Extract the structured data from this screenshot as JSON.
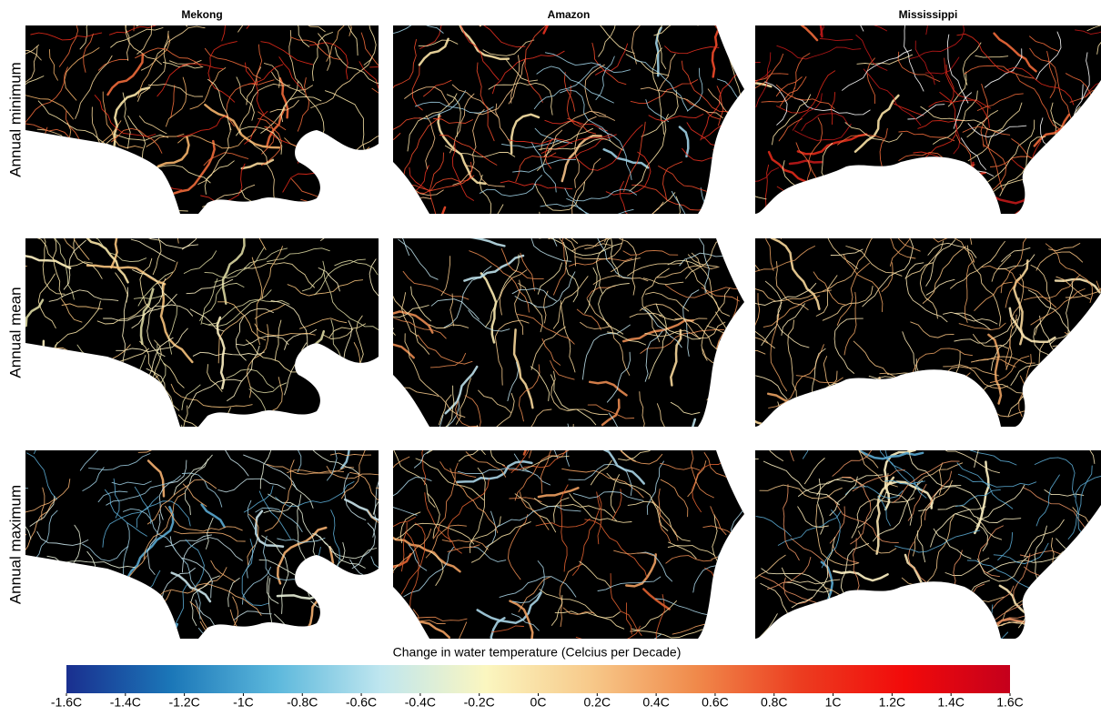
{
  "columns": [
    "Mekong",
    "Amazon",
    "Mississippi"
  ],
  "rows": [
    "Annual minimum",
    "Annual mean",
    "Annual maximum"
  ],
  "colorbar": {
    "title": "Change in water temperature (Celcius per Decade)",
    "lim": [
      -1.6,
      1.6
    ],
    "colors": [
      "#1a2f8f",
      "#1b77b8",
      "#5cb8dc",
      "#bfe6ef",
      "#fbf6c0",
      "#f7c98a",
      "#f08a4b",
      "#ec3d20",
      "#f20a0a",
      "#c5001c"
    ],
    "ticks": [
      {
        "value": -1.6,
        "label": "-1.6C"
      },
      {
        "value": -1.4,
        "label": "-1.4C"
      },
      {
        "value": -1.2,
        "label": "-1.2C"
      },
      {
        "value": -1,
        "label": "-1C"
      },
      {
        "value": -0.8,
        "label": "-0.8C"
      },
      {
        "value": -0.6,
        "label": "-0.6C"
      },
      {
        "value": -0.4,
        "label": "-0.4C"
      },
      {
        "value": -0.2,
        "label": "-0.2C"
      },
      {
        "value": 0,
        "label": "0C"
      },
      {
        "value": 0.2,
        "label": "0.2C"
      },
      {
        "value": 0.4,
        "label": "0.4C"
      },
      {
        "value": 0.6,
        "label": "0.6C"
      },
      {
        "value": 0.8,
        "label": "0.8C"
      },
      {
        "value": 1,
        "label": "1C"
      },
      {
        "value": 1.2,
        "label": "1.2C"
      },
      {
        "value": 1.4,
        "label": "1.4C"
      },
      {
        "value": 1.6,
        "label": "1.6C"
      }
    ]
  }
}
